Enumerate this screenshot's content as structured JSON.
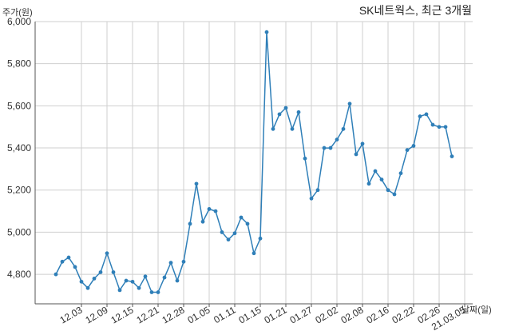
{
  "chart_data": {
    "type": "line",
    "title": "SK네트웍스, 최근 3개월",
    "ylabel": "주가(원)",
    "xlabel": "날짜(일)",
    "ylim": [
      4660,
      6000
    ],
    "yticks": [
      4800,
      5000,
      5200,
      5400,
      5600,
      5800,
      6000
    ],
    "ytick_labels": [
      "4,800",
      "5,000",
      "5,200",
      "5,400",
      "5,600",
      "5,800",
      "6,000"
    ],
    "xtick_labels": [
      "12.03",
      "12.09",
      "12.15",
      "12.21",
      "12.28",
      "01.05",
      "01.11",
      "01.15",
      "01.21",
      "01.27",
      "02.02",
      "02.08",
      "02.16",
      "02.22",
      "02.26",
      "21.03.05"
    ],
    "grid": true,
    "series": [
      {
        "values": [
          4800,
          4860,
          4880,
          4835,
          4765,
          4735,
          4780,
          4810,
          4900,
          4810,
          4725,
          4770,
          4765,
          4735,
          4790,
          4715,
          4715,
          4785,
          4855,
          4770,
          4860,
          5040,
          5230,
          5050,
          5110,
          5100,
          5000,
          4965,
          4995,
          5070,
          5040,
          4900,
          4970,
          5950,
          5490,
          5560,
          5590,
          5490,
          5570,
          5350,
          5160,
          5200,
          5400,
          5400,
          5440,
          5490,
          5610,
          5370,
          5420,
          5230,
          5290,
          5250,
          5200,
          5180,
          5280,
          5390,
          5410,
          5550,
          5560,
          5510,
          5500,
          5500,
          5360
        ]
      }
    ]
  }
}
